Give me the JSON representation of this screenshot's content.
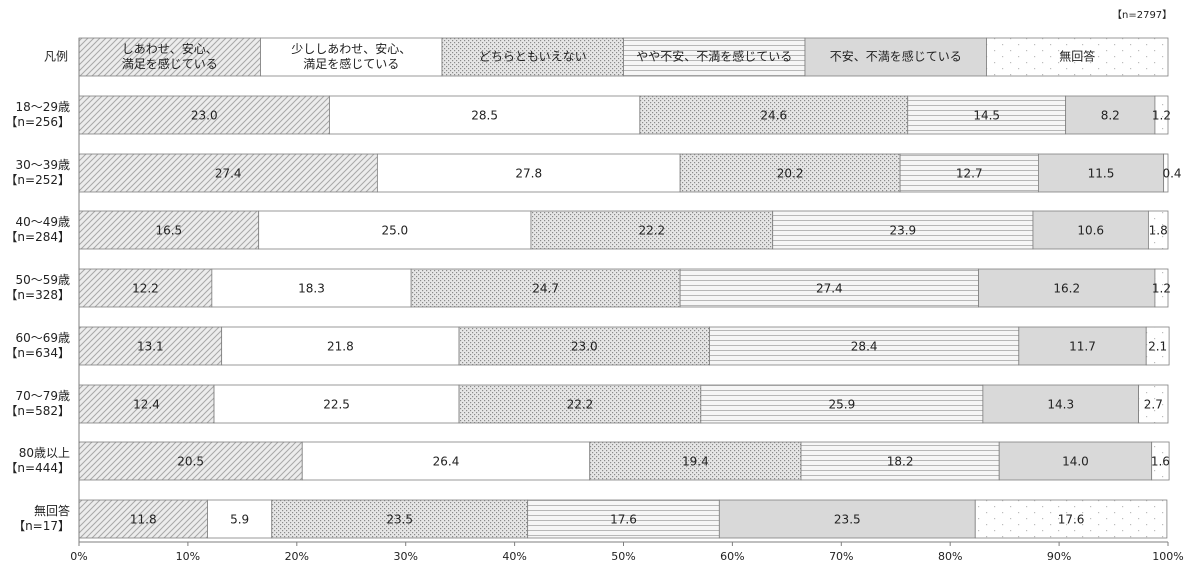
{
  "sample_note": "【n=2797】",
  "chart_data": {
    "type": "bar",
    "orientation": "horizontal",
    "stacked": true,
    "percent_scale": true,
    "xlim": [
      0,
      100
    ],
    "x_ticks": [
      "0%",
      "10%",
      "20%",
      "30%",
      "40%",
      "50%",
      "60%",
      "70%",
      "80%",
      "90%",
      "100%"
    ],
    "grid": false,
    "legend_row": {
      "label": "凡例",
      "items": [
        [
          "しあわせ、安心、",
          "満足を感じている"
        ],
        [
          "少ししあわせ、安心、",
          "満足を感じている"
        ],
        [
          "どちらともいえない"
        ],
        [
          "やや不安、不満を感じている"
        ],
        [
          "不安、不満を感じている"
        ],
        [
          "無回答"
        ]
      ]
    },
    "series": [
      {
        "name": "しあわせ、安心、満足を感じている",
        "pattern": "diagonal",
        "fill": "#ececec"
      },
      {
        "name": "少ししあわせ、安心、満足を感じている",
        "pattern": "none",
        "fill": "#ffffff"
      },
      {
        "name": "どちらともいえない",
        "pattern": "dots",
        "fill": "#e4e4e4"
      },
      {
        "name": "やや不安、不満を感じている",
        "pattern": "horizontal",
        "fill": "#f4f4f4"
      },
      {
        "name": "不安、不満を感じている",
        "pattern": "none",
        "fill": "#d9d9d9"
      },
      {
        "name": "無回答",
        "pattern": "sparse-dots",
        "fill": "#ffffff"
      }
    ],
    "categories": [
      {
        "label": [
          "18〜29歳",
          "【n=256】"
        ],
        "values": [
          23.0,
          28.5,
          24.6,
          14.5,
          8.2,
          1.2
        ]
      },
      {
        "label": [
          "30〜39歳",
          "【n=252】"
        ],
        "values": [
          27.4,
          27.8,
          20.2,
          12.7,
          11.5,
          0.4
        ]
      },
      {
        "label": [
          "40〜49歳",
          "【n=284】"
        ],
        "values": [
          16.5,
          25.0,
          22.2,
          23.9,
          10.6,
          1.8
        ]
      },
      {
        "label": [
          "50〜59歳",
          "【n=328】"
        ],
        "values": [
          12.2,
          18.3,
          24.7,
          27.4,
          16.2,
          1.2
        ]
      },
      {
        "label": [
          "60〜69歳",
          "【n=634】"
        ],
        "values": [
          13.1,
          21.8,
          23.0,
          28.4,
          11.7,
          2.1
        ]
      },
      {
        "label": [
          "70〜79歳",
          "【n=582】"
        ],
        "values": [
          12.4,
          22.5,
          22.2,
          25.9,
          14.3,
          2.7
        ]
      },
      {
        "label": [
          "80歳以上",
          "【n=444】"
        ],
        "values": [
          20.5,
          26.4,
          19.4,
          18.2,
          14.0,
          1.6
        ]
      },
      {
        "label": [
          "無回答",
          "【n=17】"
        ],
        "values": [
          11.8,
          5.9,
          23.5,
          17.6,
          23.5,
          17.6
        ]
      }
    ]
  }
}
